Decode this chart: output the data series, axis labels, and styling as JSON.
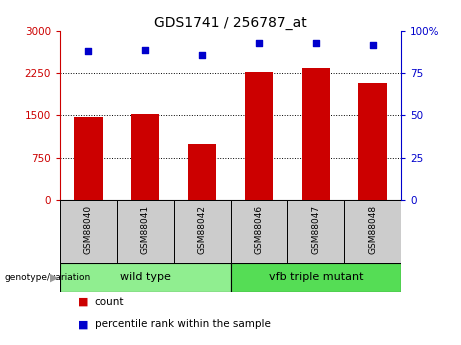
{
  "title": "GDS1741 / 256787_at",
  "samples": [
    "GSM88040",
    "GSM88041",
    "GSM88042",
    "GSM88046",
    "GSM88047",
    "GSM88048"
  ],
  "counts": [
    1480,
    1530,
    1000,
    2270,
    2340,
    2080
  ],
  "percentile_ranks": [
    88,
    89,
    86,
    93,
    93,
    92
  ],
  "groups": [
    {
      "label": "wild type",
      "indices": [
        0,
        1,
        2
      ],
      "color": "#90EE90"
    },
    {
      "label": "vfb triple mutant",
      "indices": [
        3,
        4,
        5
      ],
      "color": "#55DD55"
    }
  ],
  "bar_color": "#CC0000",
  "dot_color": "#0000CC",
  "left_axis_color": "#CC0000",
  "right_axis_color": "#0000CC",
  "ylim_left": [
    0,
    3000
  ],
  "ylim_right": [
    0,
    100
  ],
  "yticks_left": [
    0,
    750,
    1500,
    2250,
    3000
  ],
  "yticks_right": [
    0,
    25,
    50,
    75,
    100
  ],
  "ylabel_right_ticks": [
    "0",
    "25",
    "50",
    "75",
    "100%"
  ],
  "genotype_label": "genotype/variation",
  "legend_count_label": "count",
  "legend_percentile_label": "percentile rank within the sample",
  "bg_color": "#FFFFFF",
  "sample_box_color": "#CCCCCC",
  "dotted_grid_color": "#000000",
  "bar_width": 0.5,
  "arrow_color": "#999999"
}
